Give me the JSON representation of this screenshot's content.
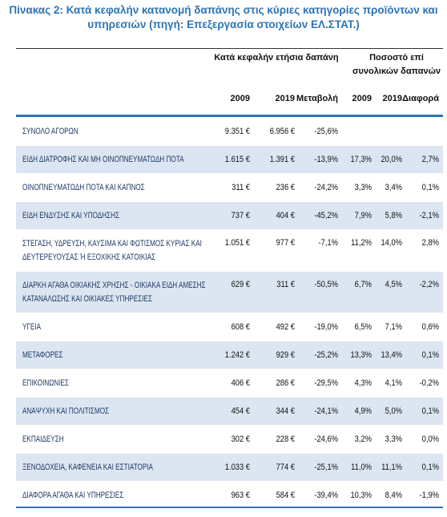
{
  "title": "Πίνακας 2: Κατά κεφαλήν κατανομή δαπάνης στις κύριες κατηγορίες προϊόντων και υπηρεσιών (πηγή: Επεξεργασία στοιχείων ΕΛ.ΣΤΑΤ.)",
  "table": {
    "column_groups": [
      "Κατά κεφαλήν ετήσια δαπάνη",
      "Ποσοστό επί συνολικών δαπανών"
    ],
    "columns": [
      "2009",
      "2019",
      "Μεταβολή",
      "2009",
      "2019",
      "Διαφορά"
    ],
    "rows": [
      {
        "label": "ΣΥΝΟΛΟ ΑΓΟΡΩΝ",
        "cells": [
          "9.351 €",
          "6.956 €",
          "-25,6%"
        ]
      },
      {
        "label": "ΕΙΔΗ ΔΙΑΤΡΟΦΗΣ ΚΑΙ ΜΗ ΟΙΝΟΠΝΕΥΜΑΤΩΔΗ ΠΟΤΑ",
        "cells": [
          "1.615 €",
          "1.391 €",
          "-13,9%",
          "17,3%",
          "20,0%",
          "2,7%"
        ]
      },
      {
        "label": "ΟΙΝΟΠΝΕΥΜΑΤΩΔΗ ΠΟΤΑ ΚΑΙ ΚΑΠΝΟΣ",
        "cells": [
          "311 €",
          "236 €",
          "-24,2%",
          "3,3%",
          "3,4%",
          "0,1%"
        ]
      },
      {
        "label": "ΕΙΔΗ ΕΝΔΥΣΗΣ ΚΑΙ ΥΠΟΔΗΣΗΣ",
        "cells": [
          "737 €",
          "404 €",
          "-45,2%",
          "7,9%",
          "5,8%",
          "-2,1%"
        ]
      },
      {
        "label": "ΣΤΕΓΑΣΗ, ΥΔΡΕΥΣΗ, ΚΑΥΣΙΜΑ ΚΑΙ ΦΩΤΙΣΜΟΣ ΚΥΡΙΑΣ ΚΑΙ ΔΕΥΤΕΡΕΥΟΥΣΑΣ Ή ΕΞΟΧΙΚΗΣ ΚΑΤΟΙΚΙΑΣ",
        "cells": [
          "1.051 €",
          "977 €",
          "-7,1%",
          "11,2%",
          "14,0%",
          "2,8%"
        ]
      },
      {
        "label": "ΔΙΑΡΚΗ ΑΓΑΘΑ ΟΙΚΙΑΚΗΣ ΧΡΗΣΗΣ - ΟΙΚΙΑΚΑ ΕΙΔΗ ΑΜΕΣΗΣ ΚΑΤΑΝΑΛΩΣΗΣ ΚΑΙ ΟΙΚΙΑΚΕΣ ΥΠΗΡΕΣΙΕΣ",
        "cells": [
          "629 €",
          "311 €",
          "-50,5%",
          "6,7%",
          "4,5%",
          "-2,2%"
        ]
      },
      {
        "label": "ΥΓΕΙΑ",
        "cells": [
          "608 €",
          "492 €",
          "-19,0%",
          "6,5%",
          "7,1%",
          "0,6%"
        ]
      },
      {
        "label": "ΜΕΤΑΦΟΡΕΣ",
        "cells": [
          "1.242 €",
          "929 €",
          "-25,2%",
          "13,3%",
          "13,4%",
          "0,1%"
        ]
      },
      {
        "label": "ΕΠΙΚΟΙΝΩΝΙΕΣ",
        "cells": [
          "406 €",
          "286 €",
          "-29,5%",
          "4,3%",
          "4,1%",
          "-0,2%"
        ]
      },
      {
        "label": "ΑΝΑΨΥΧΗ ΚΑΙ ΠΟΛΙΤΙΣΜΟΣ",
        "cells": [
          "454 €",
          "344 €",
          "-24,1%",
          "4,9%",
          "5,0%",
          "0,1%"
        ]
      },
      {
        "label": "ΕΚΠΑΙΔΕΥΣΗ",
        "cells": [
          "302 €",
          "228 €",
          "-24,6%",
          "3,2%",
          "3,3%",
          "0,0%"
        ]
      },
      {
        "label": "ΞΕΝΟΔΟΧΕΙΑ, ΚΑΦΕΝΕΙΑ ΚΑΙ ΕΣΤΙΑΤΟΡΙΑ",
        "cells": [
          "1.033 €",
          "774 €",
          "-25,1%",
          "11,0%",
          "11,1%",
          "0,1%"
        ]
      },
      {
        "label": "ΔΙΑΦΟΡΑ ΑΓΑΘΑ ΚΑΙ ΥΠΗΡΕΣΙΕΣ",
        "cells": [
          "963 €",
          "584 €",
          "-39,4%",
          "10,3%",
          "8,4%",
          "-1,9%"
        ]
      }
    ]
  }
}
